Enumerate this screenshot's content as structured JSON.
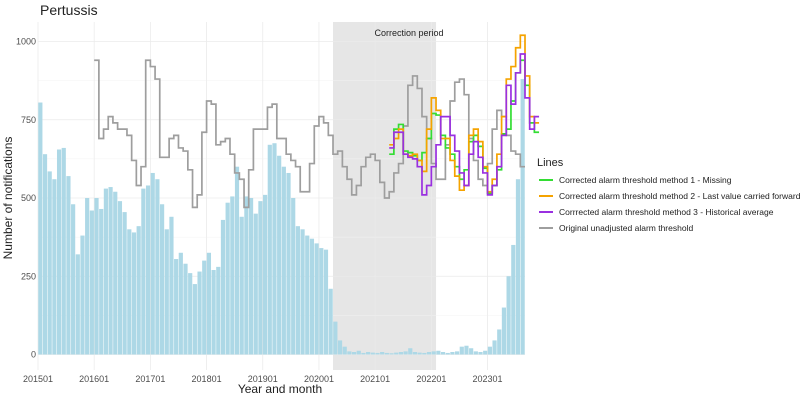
{
  "chart_data": {
    "type": "bar+line",
    "title": "Pertussis",
    "xlabel": "Year and month",
    "ylabel": "Number of notifications",
    "ylim": [
      0,
      1050
    ],
    "yticks": [
      0,
      250,
      500,
      750,
      1000
    ],
    "xtick_labels": [
      "201501",
      "201601",
      "201701",
      "201801",
      "201901",
      "202001",
      "202101",
      "202201",
      "202301"
    ],
    "start_year": 2015,
    "start_month": 1,
    "grid": true,
    "shaded_region": {
      "label": "Correction period",
      "start_month_index": 63,
      "end_month_index": 85
    },
    "notifications": [
      805,
      640,
      585,
      560,
      655,
      660,
      570,
      480,
      320,
      380,
      500,
      460,
      500,
      465,
      530,
      535,
      520,
      490,
      455,
      400,
      390,
      410,
      530,
      540,
      580,
      560,
      480,
      400,
      440,
      305,
      325,
      290,
      260,
      225,
      265,
      300,
      325,
      270,
      280,
      430,
      485,
      505,
      600,
      440,
      505,
      500,
      450,
      490,
      510,
      670,
      675,
      635,
      600,
      580,
      500,
      410,
      400,
      380,
      370,
      355,
      340,
      335,
      210,
      105,
      45,
      25,
      10,
      8,
      12,
      5,
      8,
      6,
      5,
      8,
      5,
      4,
      6,
      8,
      10,
      20,
      8,
      6,
      5,
      8,
      10,
      12,
      8,
      5,
      8,
      10,
      25,
      28,
      20,
      10,
      8,
      12,
      25,
      45,
      80,
      150,
      250,
      350,
      560,
      880
    ],
    "legend": {
      "title": "Lines",
      "position": "right",
      "items": [
        {
          "label": "Corrected alarm threshold method 1 - Missing",
          "color": "#33dd33"
        },
        {
          "label": "Corrected alarm threshold method 2 - Last value carried forward",
          "color": "#f5a300"
        },
        {
          "label": "Corrrected alarm threshold method 3 - Historical average",
          "color": "#9a30e0"
        },
        {
          "label": "Original unadjusted alarm threshold",
          "color": "#9e9e9e"
        }
      ]
    },
    "series": [
      {
        "name": "Original unadjusted alarm threshold",
        "color": "#9e9e9e",
        "start_index": 12,
        "values": [
          940,
          690,
          720,
          760,
          740,
          720,
          720,
          700,
          620,
          540,
          600,
          940,
          920,
          880,
          630,
          630,
          690,
          700,
          660,
          650,
          590,
          470,
          510,
          710,
          810,
          800,
          670,
          680,
          690,
          640,
          580,
          560,
          470,
          590,
          720,
          720,
          720,
          790,
          800,
          690,
          690,
          640,
          620,
          600,
          520,
          520,
          610,
          730,
          760,
          740,
          700,
          640,
          650,
          600,
          560,
          510,
          540,
          600,
          630,
          640,
          620,
          550,
          500,
          520,
          580,
          610,
          730,
          860,
          890,
          850,
          760,
          690,
          610,
          560,
          560,
          670,
          810,
          870,
          880,
          830,
          690,
          620,
          560,
          540,
          610,
          720,
          780,
          760,
          700,
          650,
          640,
          600
        ]
      },
      {
        "name": "Corrected alarm threshold method 1 - Missing",
        "color": "#33dd33",
        "start_index": 75,
        "values": [
          640,
          720,
          735,
          650,
          645,
          635,
          620,
          645,
          690,
          770,
          765,
          700,
          660,
          640,
          600,
          560,
          590,
          680,
          700,
          665,
          595,
          515,
          540,
          590,
          705,
          720,
          810,
          900,
          940,
          860,
          740,
          710
        ]
      },
      {
        "name": "Corrected alarm threshold method 2 - Last value carried forward",
        "color": "#f5a300",
        "start_index": 75,
        "values": [
          670,
          690,
          720,
          640,
          635,
          640,
          620,
          585,
          720,
          820,
          780,
          690,
          690,
          620,
          570,
          525,
          540,
          700,
          720,
          680,
          600,
          520,
          560,
          640,
          760,
          880,
          920,
          980,
          1020,
          890,
          760,
          740
        ]
      },
      {
        "name": "Corrrected alarm threshold method 3 - Historical average",
        "color": "#9a30e0",
        "start_index": 75,
        "values": [
          660,
          710,
          710,
          640,
          630,
          625,
          600,
          510,
          540,
          600,
          670,
          760,
          760,
          700,
          650,
          580,
          540,
          640,
          680,
          630,
          580,
          510,
          540,
          600,
          700,
          860,
          800,
          900,
          960,
          820,
          720,
          760
        ]
      }
    ]
  }
}
